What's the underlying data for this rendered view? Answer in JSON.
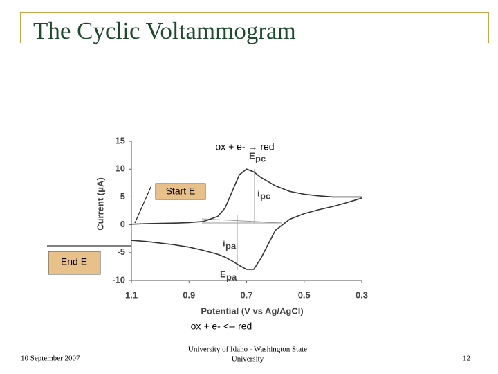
{
  "title": "The Cyclic Voltammogram",
  "footer": {
    "date": "10 September 2007",
    "institution": [
      "University of Idaho - Washington State",
      "University"
    ],
    "page": "12"
  },
  "chart_data": {
    "type": "line",
    "x_label": "Potential (V vs Ag/AgCl)",
    "y_label": "Current (μA)",
    "x": [
      1.1,
      1.05,
      1.0,
      0.95,
      0.9,
      0.85,
      0.8,
      0.775,
      0.75,
      0.725,
      0.7,
      0.675,
      0.65,
      0.6,
      0.55,
      0.5,
      0.45,
      0.4,
      0.35,
      0.3
    ],
    "series": [
      {
        "color": "#333333",
        "values": [
          0.1,
          0.2,
          0.25,
          0.3,
          0.4,
          0.6,
          1.5,
          3,
          6,
          9,
          10,
          9.5,
          8.5,
          7,
          6,
          5.5,
          5.2,
          5,
          5,
          5
        ]
      },
      {
        "color": "#333333",
        "values": [
          -2.8,
          -3,
          -3.3,
          -3.6,
          -4,
          -4.6,
          -5.3,
          -5.8,
          -6.5,
          -7.3,
          -8,
          -8,
          -6,
          -1,
          1,
          2,
          2.7,
          3.3,
          4,
          4.8
        ]
      }
    ],
    "xlim": [
      1.1,
      0.3
    ],
    "xticks": [
      1.1,
      0.9,
      0.7,
      0.5,
      0.3
    ],
    "ylim": [
      -10,
      15
    ],
    "yticks": [
      15,
      10,
      5,
      0,
      -5,
      -10
    ],
    "annotations": [
      {
        "main": "E",
        "sub": "pc"
      },
      {
        "main": "i",
        "sub": "pc"
      },
      {
        "main": "i",
        "sub": "pa"
      },
      {
        "main": "E",
        "sub": "pa"
      }
    ],
    "callouts": {
      "reduction": "ox + e- → red",
      "start": "Start E",
      "end": "End E",
      "oxidation": "ox + e- <-- red"
    }
  }
}
